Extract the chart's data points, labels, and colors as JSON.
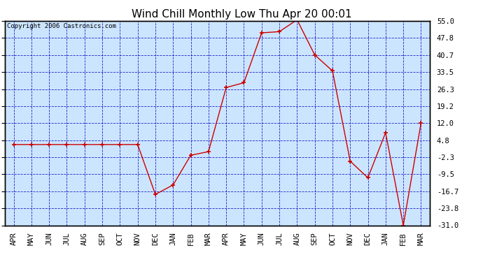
{
  "title": "Wind Chill Monthly Low Thu Apr 20 00:01",
  "copyright": "Copyright 2006 Castronics.com",
  "x_labels": [
    "APR",
    "MAY",
    "JUN",
    "JUL",
    "AUG",
    "SEP",
    "OCT",
    "NOV",
    "DEC",
    "JAN",
    "FEB",
    "MAR",
    "APR",
    "MAY",
    "JUN",
    "JUL",
    "AUG",
    "SEP",
    "OCT",
    "NOV",
    "DEC",
    "JAN",
    "FEB",
    "MAR"
  ],
  "y_values": [
    3.0,
    3.0,
    3.0,
    3.0,
    3.0,
    3.0,
    3.0,
    3.0,
    -18.0,
    -14.0,
    -1.5,
    0.0,
    27.0,
    29.0,
    50.0,
    50.5,
    55.5,
    40.7,
    34.0,
    -4.0,
    -11.0,
    8.0,
    -31.0,
    12.0
  ],
  "ylim_min": -31.0,
  "ylim_max": 55.0,
  "yticks": [
    55.0,
    47.8,
    40.7,
    33.5,
    26.3,
    19.2,
    12.0,
    4.8,
    -2.3,
    -9.5,
    -16.7,
    -23.8,
    -31.0
  ],
  "line_color": "#cc0000",
  "bg_color": "#cce5ff",
  "grid_color": "#0000bb",
  "title_fontsize": 11,
  "axis_label_fontsize": 7.5,
  "copyright_fontsize": 6.5
}
